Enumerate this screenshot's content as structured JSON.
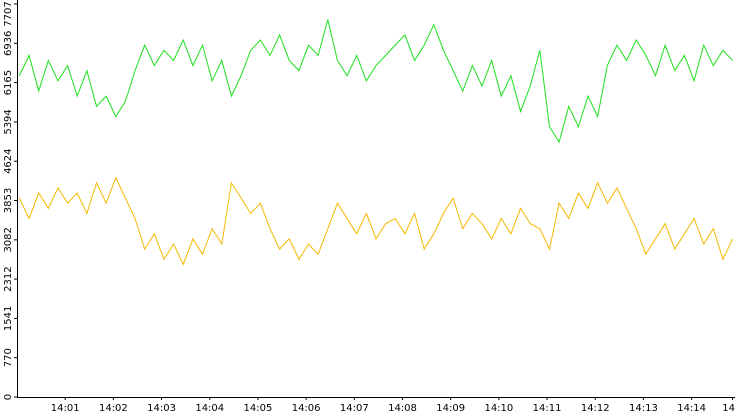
{
  "chart_data": {
    "type": "line",
    "x": [
      0.05,
      0.25,
      0.45,
      0.65,
      0.85,
      1.05,
      1.25,
      1.45,
      1.65,
      1.85,
      2.05,
      2.25,
      2.45,
      2.65,
      2.85,
      3.05,
      3.25,
      3.45,
      3.65,
      3.85,
      4.05,
      4.25,
      4.45,
      4.65,
      4.85,
      5.05,
      5.25,
      5.45,
      5.65,
      5.85,
      6.05,
      6.25,
      6.45,
      6.65,
      6.85,
      7.05,
      7.25,
      7.45,
      7.65,
      7.85,
      8.05,
      8.25,
      8.45,
      8.65,
      8.85,
      9.05,
      9.25,
      9.45,
      9.65,
      9.85,
      10.05,
      10.25,
      10.45,
      10.65,
      10.85,
      11.05,
      11.25,
      11.45,
      11.65,
      11.85,
      12.05,
      12.25,
      12.45,
      12.65,
      12.85,
      13.05,
      13.25,
      13.45,
      13.65,
      13.85,
      14.05,
      14.25,
      14.45,
      14.65,
      14.85
    ],
    "series": [
      {
        "color": "#1ee01e",
        "values": [
          6300,
          6700,
          6000,
          6600,
          6200,
          6500,
          5900,
          6400,
          5700,
          5900,
          5500,
          5800,
          6400,
          6900,
          6500,
          6800,
          6600,
          7000,
          6500,
          6900,
          6200,
          6600,
          5900,
          6300,
          6800,
          7000,
          6700,
          7100,
          6600,
          6400,
          6900,
          6700,
          7400,
          6600,
          6300,
          6700,
          6200,
          6500,
          6700,
          6900,
          7100,
          6600,
          6900,
          7300,
          6800,
          6400,
          6000,
          6500,
          6100,
          6600,
          5900,
          6300,
          5600,
          6100,
          6800,
          5300,
          5000,
          5700,
          5300,
          5900,
          5500,
          6500,
          6900,
          6600,
          7000,
          6700,
          6300,
          6900,
          6400,
          6700,
          6200,
          6900,
          6500,
          6800,
          6600
        ]
      },
      {
        "color": "#f5b800",
        "values": [
          3900,
          3500,
          4000,
          3700,
          4100,
          3800,
          4000,
          3600,
          4200,
          3800,
          4300,
          3900,
          3500,
          2900,
          3200,
          2700,
          3000,
          2600,
          3100,
          2800,
          3300,
          3000,
          4200,
          3900,
          3600,
          3800,
          3300,
          2900,
          3100,
          2700,
          3000,
          2800,
          3300,
          3800,
          3500,
          3200,
          3600,
          3100,
          3400,
          3500,
          3200,
          3600,
          2900,
          3200,
          3600,
          3900,
          3300,
          3600,
          3400,
          3100,
          3500,
          3200,
          3700,
          3400,
          3300,
          2900,
          3800,
          3500,
          4000,
          3700,
          4200,
          3800,
          4100,
          3700,
          3300,
          2800,
          3100,
          3400,
          2900,
          3200,
          3500,
          3000,
          3300,
          2700,
          3100
        ]
      }
    ],
    "xlim": [
      0,
      14.9
    ],
    "xticks": [
      {
        "value": 1,
        "label": "14:01"
      },
      {
        "value": 2,
        "label": "14:02"
      },
      {
        "value": 3,
        "label": "14:03"
      },
      {
        "value": 4,
        "label": "14:04"
      },
      {
        "value": 5,
        "label": "14:05"
      },
      {
        "value": 6,
        "label": "14:06"
      },
      {
        "value": 7,
        "label": "14:07"
      },
      {
        "value": 8,
        "label": "14:08"
      },
      {
        "value": 9,
        "label": "14:09"
      },
      {
        "value": 10,
        "label": "14:10"
      },
      {
        "value": 11,
        "label": "14:11"
      },
      {
        "value": 12,
        "label": "14:12"
      },
      {
        "value": 13,
        "label": "14:13"
      },
      {
        "value": 14,
        "label": "14:14"
      },
      {
        "value": 14.85,
        "label": "14"
      }
    ],
    "ylim": [
      0,
      7707
    ],
    "yticks": [
      0,
      770,
      1541,
      2312,
      3082,
      3853,
      4624,
      5394,
      6165,
      6936,
      7707
    ]
  }
}
